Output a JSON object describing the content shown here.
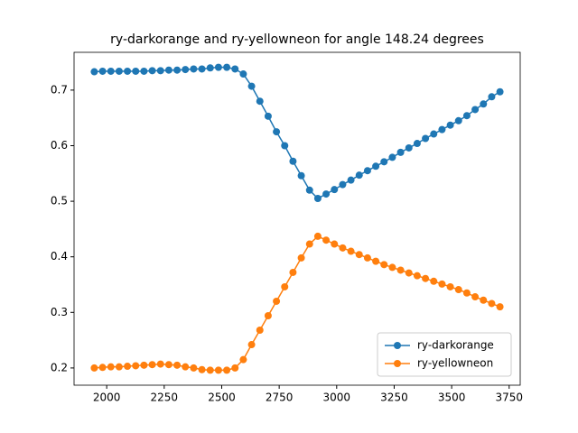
{
  "chart_data": {
    "type": "line",
    "title": "ry-darkorange and ry-yellowneon for angle 148.24 degrees",
    "x": [
      1946,
      1982,
      2018,
      2054,
      2090,
      2126,
      2162,
      2198,
      2234,
      2270,
      2306,
      2342,
      2378,
      2414,
      2450,
      2486,
      2522,
      2558,
      2594,
      2630,
      2666,
      2702,
      2738,
      2774,
      2810,
      2846,
      2882,
      2918,
      2954,
      2990,
      3026,
      3062,
      3098,
      3134,
      3170,
      3206,
      3242,
      3278,
      3314,
      3350,
      3386,
      3422,
      3458,
      3494,
      3530,
      3566,
      3602,
      3638,
      3674,
      3710
    ],
    "series": [
      {
        "name": "ry-darkorange",
        "color": "#1f77b4",
        "values": [
          0.733,
          0.734,
          0.734,
          0.734,
          0.734,
          0.734,
          0.734,
          0.735,
          0.735,
          0.736,
          0.736,
          0.737,
          0.738,
          0.738,
          0.74,
          0.741,
          0.741,
          0.738,
          0.729,
          0.707,
          0.68,
          0.653,
          0.625,
          0.6,
          0.572,
          0.546,
          0.52,
          0.505,
          0.513,
          0.521,
          0.53,
          0.538,
          0.547,
          0.555,
          0.563,
          0.571,
          0.579,
          0.588,
          0.596,
          0.604,
          0.613,
          0.621,
          0.629,
          0.637,
          0.645,
          0.654,
          0.665,
          0.675,
          0.688,
          0.697
        ]
      },
      {
        "name": "ry-yellowneon",
        "color": "#ff7f0e",
        "values": [
          0.2,
          0.201,
          0.202,
          0.202,
          0.203,
          0.204,
          0.205,
          0.206,
          0.207,
          0.206,
          0.205,
          0.202,
          0.2,
          0.197,
          0.196,
          0.196,
          0.196,
          0.2,
          0.215,
          0.242,
          0.268,
          0.294,
          0.32,
          0.346,
          0.372,
          0.398,
          0.423,
          0.437,
          0.43,
          0.423,
          0.416,
          0.41,
          0.404,
          0.398,
          0.392,
          0.386,
          0.381,
          0.376,
          0.371,
          0.366,
          0.361,
          0.356,
          0.351,
          0.346,
          0.341,
          0.335,
          0.328,
          0.322,
          0.316,
          0.31
        ]
      }
    ],
    "xlim": [
      1858,
      3798
    ],
    "ylim": [
      0.169,
      0.768
    ],
    "xticks": [
      2000,
      2250,
      2500,
      2750,
      3000,
      3250,
      3500,
      3750
    ],
    "yticks": [
      0.2,
      0.3,
      0.4,
      0.5,
      0.6,
      0.7
    ],
    "legend": "lower right"
  }
}
